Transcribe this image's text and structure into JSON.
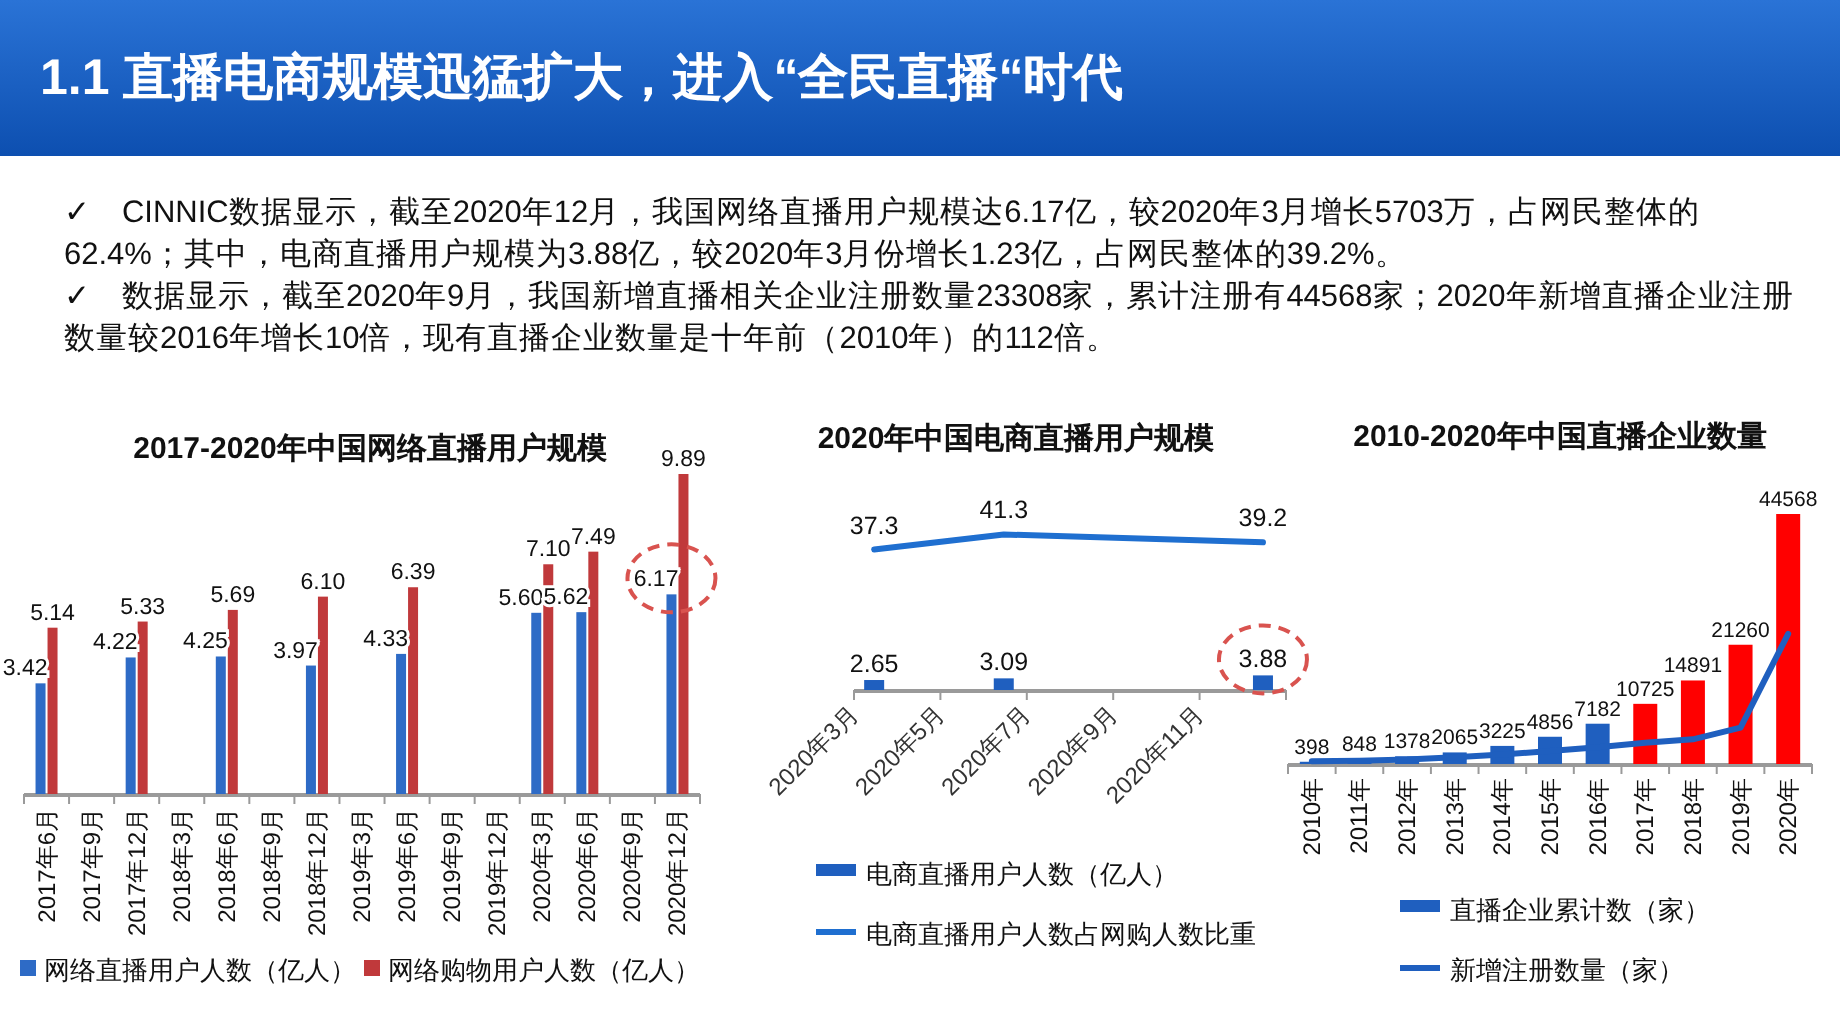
{
  "chart_data": [
    {
      "type": "other",
      "title": "1.1 直播电商规模迅猛扩大，进入“全民直播“时代",
      "annotations": [
        "✓　CINNIC数据显示，截至2020年12月，我国网络直播用户规模达6.17亿，较2020年3月增长5703万，占网民整体的62.4%；其中，电商直播用户规模为3.88亿，较2020年3月份增长1.23亿，占网民整体的39.2%。",
        "✓　数据显示，截至2020年9月，我国新增直播相关企业注册数量23308家，累计注册有44568家；2020年新增直播企业注册数量较2016年增长10倍，现有直播企业数量是十年前（2010年）的112倍。"
      ]
    },
    {
      "type": "bar",
      "title": "2017-2020年中国网络直播用户规模",
      "categories": [
        "2017年6月",
        "2017年9月",
        "2017年12月",
        "2018年3月",
        "2018年6月",
        "2018年9月",
        "2018年12月",
        "2019年3月",
        "2019年6月",
        "2019年9月",
        "2019年12月",
        "2020年3月",
        "2020年6月",
        "2020年9月",
        "2020年12月"
      ],
      "series": [
        {
          "name": "网络直播用户人数（亿人）",
          "color": "#2e6bc6",
          "values": [
            3.42,
            null,
            4.22,
            null,
            4.25,
            null,
            3.97,
            null,
            4.33,
            null,
            null,
            5.6,
            5.62,
            null,
            6.17
          ],
          "value_labels": [
            "3.42",
            null,
            "4.22",
            null,
            "4.25",
            null,
            "3.97",
            null,
            "4.33",
            null,
            null,
            "5.60",
            "5.62",
            null,
            "6.17"
          ]
        },
        {
          "name": "网络购物用户人数（亿人）",
          "color": "#c0393b",
          "values": [
            5.14,
            null,
            5.33,
            null,
            5.69,
            null,
            6.1,
            null,
            6.39,
            null,
            null,
            7.1,
            7.49,
            null,
            9.89
          ],
          "value_labels": [
            "5.14",
            null,
            "5.33",
            null,
            "5.69",
            null,
            "6.10",
            null,
            "6.39",
            null,
            null,
            "7.10",
            "7.49",
            null,
            "9.89"
          ]
        }
      ],
      "legend": "bottom"
    },
    {
      "type": "bar",
      "title": "2020年中国电商直播用户规模",
      "x": [
        "2020-03-15",
        "2020-06-15",
        "2020-12-15"
      ],
      "xlim": [
        "2020-03",
        "2021-01"
      ],
      "xticks": [
        {
          "value": "2020-03",
          "label": "2020年3月"
        },
        {
          "value": "2020-05",
          "label": "2020年5月"
        },
        {
          "value": "2020-07",
          "label": "2020年7月"
        },
        {
          "value": "2020-09",
          "label": "2020年9月"
        },
        {
          "value": "2020-11",
          "label": "2020年11月"
        },
        {
          "value": "2021-01",
          "label": null
        }
      ],
      "series": [
        {
          "name": "电商直播用户人数（亿人）",
          "type": "bar",
          "color": "#1f5fbf",
          "values": [
            2.65,
            3.09,
            3.88
          ]
        },
        {
          "name": "电商直播用户人数占网购人数比重",
          "type": "line",
          "color": "#1f6fd0",
          "values": [
            37.3,
            41.3,
            39.2
          ]
        }
      ],
      "data_labels": true,
      "legend": "bottom"
    },
    {
      "type": "bar",
      "title": "2010-2020年中国直播企业数量",
      "categories": [
        "2010年",
        "2011年",
        "2012年",
        "2013年",
        "2014年",
        "2015年",
        "2016年",
        "2017年",
        "2018年",
        "2019年",
        "2020年"
      ],
      "series": [
        {
          "name": "直播企业累计数（家）",
          "type": "bar",
          "color": "#1f5fbf",
          "colors": [
            "#1f5fbf",
            "#1f5fbf",
            "#1f5fbf",
            "#1f5fbf",
            "#1f5fbf",
            "#1f5fbf",
            "#1f5fbf",
            "#ff0000",
            "#ff0000",
            "#ff0000",
            "#ff0000"
          ],
          "values": [
            398,
            848,
            1378,
            2065,
            3225,
            4856,
            7182,
            10725,
            14891,
            21260,
            44568
          ],
          "value_labels": [
            "398",
            "848",
            "1378",
            "2065",
            "3225",
            "4856",
            "7182",
            "10725",
            "14891",
            "21260",
            "44568"
          ]
        },
        {
          "name": "新增注册数量（家）",
          "type": "line",
          "color": "#1f5fbf",
          "values": [
            500,
            600,
            800,
            1200,
            1700,
            2300,
            3000,
            3800,
            4400,
            6500,
            23200
          ]
        }
      ],
      "legend": "bottom"
    }
  ]
}
